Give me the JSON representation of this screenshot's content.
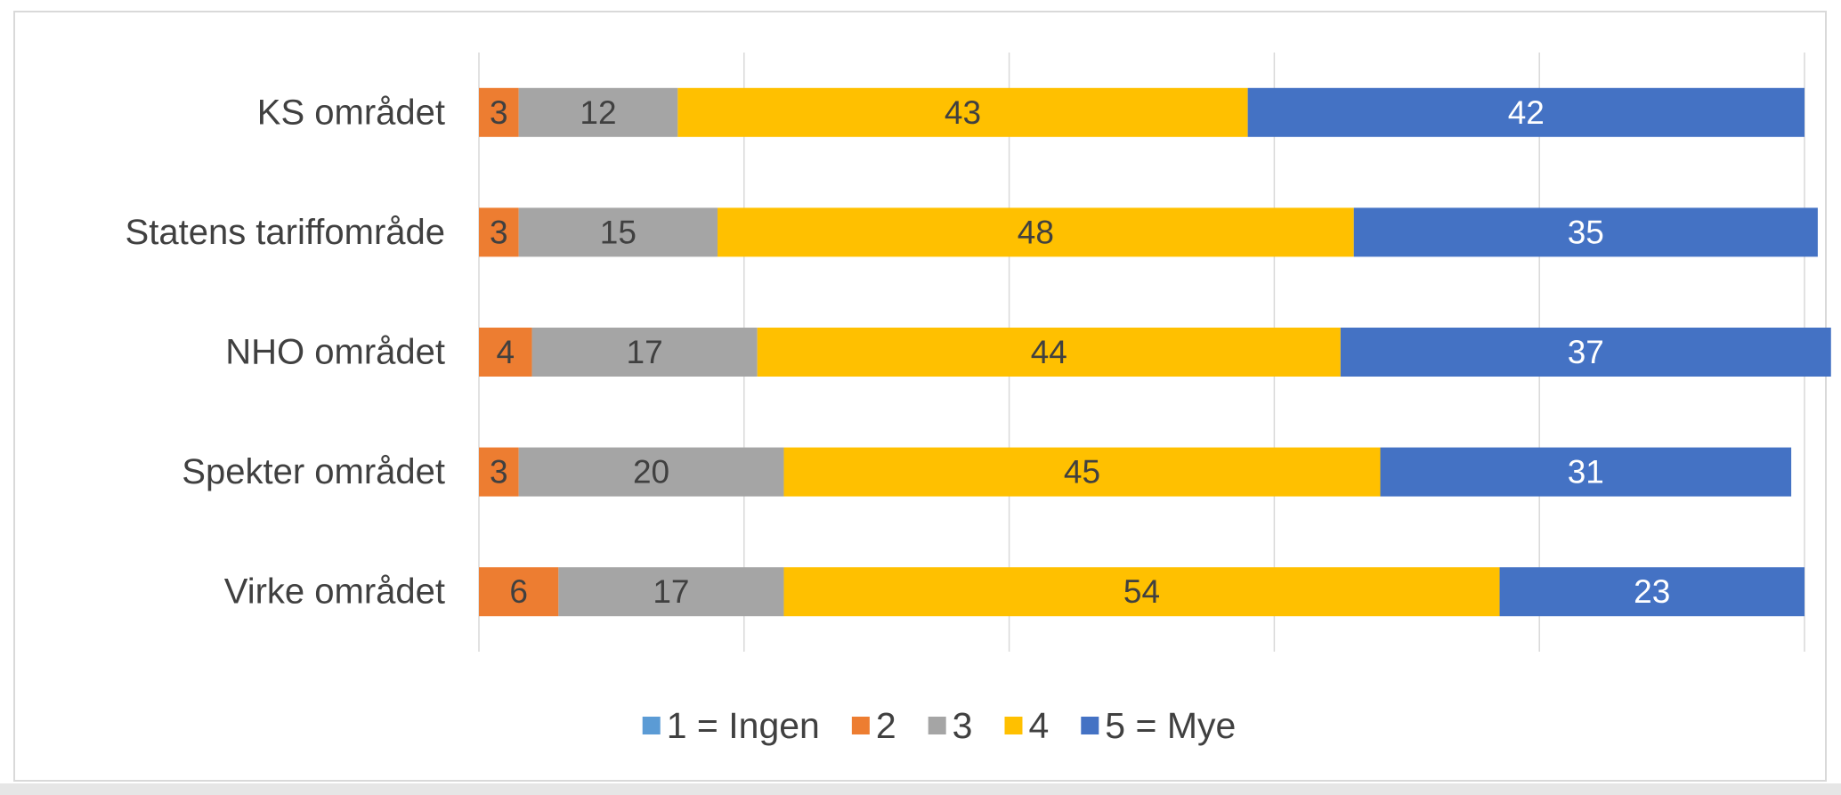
{
  "chart_data": {
    "type": "bar_stacked_horizontal",
    "categories": [
      "KS området",
      "Statens tariffområde",
      "NHO området",
      "Spekter området",
      "Virke området"
    ],
    "series": [
      {
        "name": "1 = Ingen",
        "color": "#5b9bd5",
        "label_color": "#404040",
        "values": [
          0,
          0,
          0,
          0,
          0
        ]
      },
      {
        "name": "2",
        "color": "#ed7d31",
        "label_color": "#404040",
        "values": [
          3,
          3,
          4,
          3,
          6
        ]
      },
      {
        "name": "3",
        "color": "#a5a5a5",
        "label_color": "#404040",
        "values": [
          12,
          15,
          17,
          20,
          17
        ]
      },
      {
        "name": "4",
        "color": "#ffc000",
        "label_color": "#404040",
        "values": [
          43,
          48,
          44,
          45,
          54
        ]
      },
      {
        "name": "5 = Mye",
        "color": "#4472c4",
        "label_color": "#ffffff",
        "values": [
          42,
          35,
          37,
          31,
          23
        ]
      }
    ],
    "xlim": [
      0,
      100
    ],
    "xticks": [
      0,
      20,
      40,
      60,
      80,
      100
    ],
    "grid": true,
    "legend": "bottom"
  }
}
